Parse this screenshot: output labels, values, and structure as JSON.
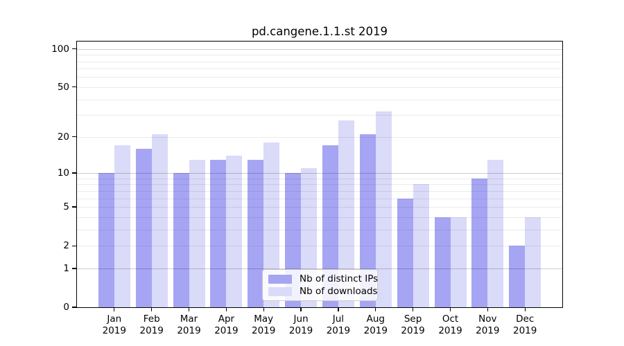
{
  "title": "pd.cangene.1.1.st 2019",
  "chart_data": {
    "type": "bar",
    "title": "pd.cangene.1.1.st 2019",
    "categories": [
      "Jan",
      "Feb",
      "Mar",
      "Apr",
      "May",
      "Jun",
      "Jul",
      "Aug",
      "Sep",
      "Oct",
      "Nov",
      "Dec"
    ],
    "x_year_label": "2019",
    "series": [
      {
        "name": "Nb of distinct IPs",
        "color": "#a5a5f3",
        "values": [
          10,
          16,
          10,
          13,
          13,
          10,
          17,
          21,
          6,
          4,
          9,
          2
        ]
      },
      {
        "name": "Nb of downloads",
        "color": "#dadaf9",
        "values": [
          17,
          21,
          13,
          14,
          18,
          11,
          27,
          32,
          8,
          4,
          13,
          4
        ]
      }
    ],
    "yaxis": {
      "scale": "log1p",
      "ylim": [
        0,
        115
      ],
      "tick_values": [
        100,
        50,
        20,
        10,
        5,
        2,
        1,
        0
      ],
      "tick_labels": [
        "100",
        "50",
        "20",
        "10",
        "5",
        "2",
        "1",
        "0"
      ],
      "major_grid_values": [
        1,
        10,
        100
      ],
      "minor_grid_values": [
        2,
        3,
        4,
        5,
        6,
        7,
        8,
        9,
        20,
        30,
        40,
        50,
        60,
        70,
        80,
        90
      ]
    },
    "legend": {
      "position": "inside lower center",
      "border_color": "#cccccc"
    },
    "grid": true
  }
}
